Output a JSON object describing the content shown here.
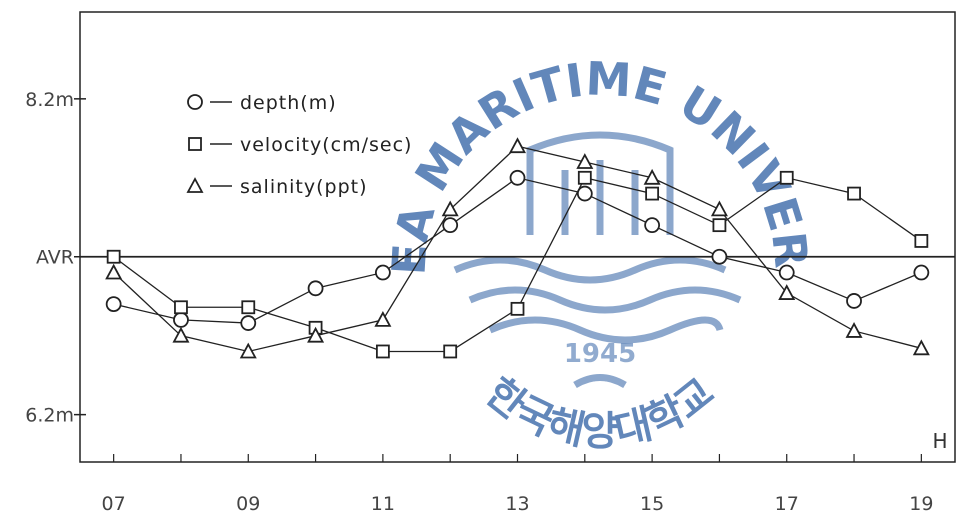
{
  "chart_data": {
    "type": "line",
    "x": [
      7,
      8,
      9,
      10,
      11,
      12,
      13,
      14,
      15,
      16,
      17,
      18,
      19
    ],
    "x_tick_labels": [
      "07",
      "09",
      "11",
      "13",
      "15",
      "17",
      "19"
    ],
    "x_tick_values": [
      7,
      9,
      11,
      13,
      15,
      17,
      19
    ],
    "xlim": [
      6.5,
      19.5
    ],
    "x_unit": "H",
    "y_tick_labels": [
      "8.2m",
      "AVR",
      "6.2m"
    ],
    "y_tick_values": [
      8.2,
      7.2,
      6.2
    ],
    "ylim": [
      5.9,
      8.75
    ],
    "reference_line": 7.2,
    "grid": false,
    "legend_position": "top-left",
    "series": [
      {
        "name": "depth(m)",
        "marker": "circle",
        "values": [
          6.9,
          6.8,
          6.78,
          7.0,
          7.1,
          7.4,
          7.7,
          7.6,
          7.4,
          7.2,
          7.1,
          6.92,
          7.1
        ]
      },
      {
        "name": "velocity(cm/sec)",
        "marker": "square",
        "values": [
          7.2,
          6.88,
          6.88,
          6.75,
          6.6,
          6.6,
          6.87,
          7.7,
          7.6,
          7.4,
          7.7,
          7.6,
          7.3
        ]
      },
      {
        "name": "salinity(ppt)",
        "marker": "triangle",
        "values": [
          7.1,
          6.7,
          6.6,
          6.7,
          6.8,
          7.5,
          7.9,
          7.8,
          7.7,
          7.5,
          6.97,
          6.73,
          6.62
        ]
      }
    ]
  },
  "watermark": {
    "arc_text": "KOREA MARITIME UNIVERSITY",
    "year": "1945",
    "bottom_text": "한국해양대학교",
    "color": "#2e5fa3"
  }
}
